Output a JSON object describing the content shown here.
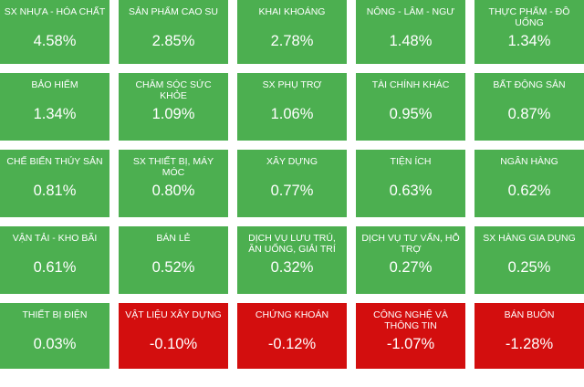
{
  "chart_data": {
    "type": "heatmap",
    "unit": "%",
    "colors": {
      "positive": "#4caf50",
      "negative": "#d30e0e"
    },
    "columns": 5,
    "rows": 5,
    "cells": [
      {
        "label": "SX nhựa - hóa chất",
        "value": 4.58,
        "display": "4.58%"
      },
      {
        "label": "Sản phẩm cao su",
        "value": 2.85,
        "display": "2.85%"
      },
      {
        "label": "Khai khoáng",
        "value": 2.78,
        "display": "2.78%"
      },
      {
        "label": "Nông - Lâm - Ngư",
        "value": 1.48,
        "display": "1.48%"
      },
      {
        "label": "Thực phẩm - Đồ uống",
        "value": 1.34,
        "display": "1.34%"
      },
      {
        "label": "Bảo hiểm",
        "value": 1.34,
        "display": "1.34%"
      },
      {
        "label": "Chăm sóc sức khỏe",
        "value": 1.09,
        "display": "1.09%"
      },
      {
        "label": "SX phụ trợ",
        "value": 1.06,
        "display": "1.06%"
      },
      {
        "label": "Tài chính khác",
        "value": 0.95,
        "display": "0.95%"
      },
      {
        "label": "Bất động sản",
        "value": 0.87,
        "display": "0.87%"
      },
      {
        "label": "Chế biến thủy sản",
        "value": 0.81,
        "display": "0.81%"
      },
      {
        "label": "SX thiết bị, máy móc",
        "value": 0.8,
        "display": "0.80%"
      },
      {
        "label": "Xây dựng",
        "value": 0.77,
        "display": "0.77%"
      },
      {
        "label": "Tiện ích",
        "value": 0.63,
        "display": "0.63%"
      },
      {
        "label": "Ngân hàng",
        "value": 0.62,
        "display": "0.62%"
      },
      {
        "label": "Vận tải - kho bãi",
        "value": 0.61,
        "display": "0.61%"
      },
      {
        "label": "Bán lẻ",
        "value": 0.52,
        "display": "0.52%"
      },
      {
        "label": "Dịch vụ lưu trú, ăn uống, giải trí",
        "value": 0.32,
        "display": "0.32%"
      },
      {
        "label": "Dịch vụ tư vấn, hỗ trợ",
        "value": 0.27,
        "display": "0.27%"
      },
      {
        "label": "SX hàng gia dụng",
        "value": 0.25,
        "display": "0.25%"
      },
      {
        "label": "Thiết bị điện",
        "value": 0.03,
        "display": "0.03%"
      },
      {
        "label": "Vật liệu xây dựng",
        "value": -0.1,
        "display": "-0.10%"
      },
      {
        "label": "Chứng khoán",
        "value": -0.12,
        "display": "-0.12%"
      },
      {
        "label": "Công nghệ và thông tin",
        "value": -1.07,
        "display": "-1.07%"
      },
      {
        "label": "Bán buôn",
        "value": -1.28,
        "display": "-1.28%"
      }
    ]
  }
}
